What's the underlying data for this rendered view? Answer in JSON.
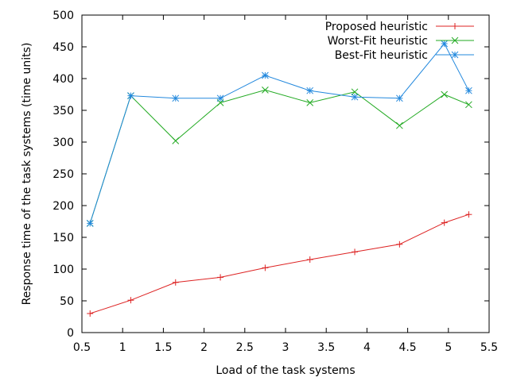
{
  "chart_data": {
    "type": "line",
    "title": "",
    "xlabel": "Load of the task systems",
    "ylabel": "Response time of the task systems (time units)",
    "xlim": [
      0.5,
      5.5
    ],
    "ylim": [
      0,
      500
    ],
    "xticks": [
      0.5,
      1,
      1.5,
      2,
      2.5,
      3,
      3.5,
      4,
      4.5,
      5,
      5.5
    ],
    "yticks": [
      0,
      50,
      100,
      150,
      200,
      250,
      300,
      350,
      400,
      450,
      500
    ],
    "xtick_labels": [
      "0.5",
      "1",
      "1.5",
      "2",
      "2.5",
      "3",
      "3.5",
      "4",
      "4.5",
      "5",
      "5.5"
    ],
    "ytick_labels": [
      "0",
      "50",
      "100",
      "150",
      "200",
      "250",
      "300",
      "350",
      "400",
      "450",
      "500"
    ],
    "grid": false,
    "legend_position": "top-right",
    "series": [
      {
        "name": "Proposed heuristic",
        "color": "#dd2222",
        "marker": "plus",
        "x": [
          0.6,
          1.1,
          1.65,
          2.2,
          2.75,
          3.3,
          3.85,
          4.4,
          4.95,
          5.25
        ],
        "y": [
          30,
          51,
          79,
          87,
          102,
          115,
          127,
          139,
          173,
          186
        ]
      },
      {
        "name": "Worst-Fit heuristic",
        "color": "#22aa22",
        "marker": "cross",
        "x": [
          0.6,
          1.1,
          1.65,
          2.2,
          2.75,
          3.3,
          3.85,
          4.4,
          4.95,
          5.25
        ],
        "y": [
          172,
          373,
          302,
          362,
          382,
          362,
          379,
          326,
          375,
          359
        ]
      },
      {
        "name": "Best-Fit heuristic",
        "color": "#2288dd",
        "marker": "star",
        "x": [
          0.6,
          1.1,
          1.65,
          2.2,
          2.75,
          3.3,
          3.85,
          4.4,
          4.95,
          5.25
        ],
        "y": [
          172,
          373,
          369,
          369,
          405,
          381,
          371,
          369,
          455,
          381
        ]
      }
    ]
  }
}
